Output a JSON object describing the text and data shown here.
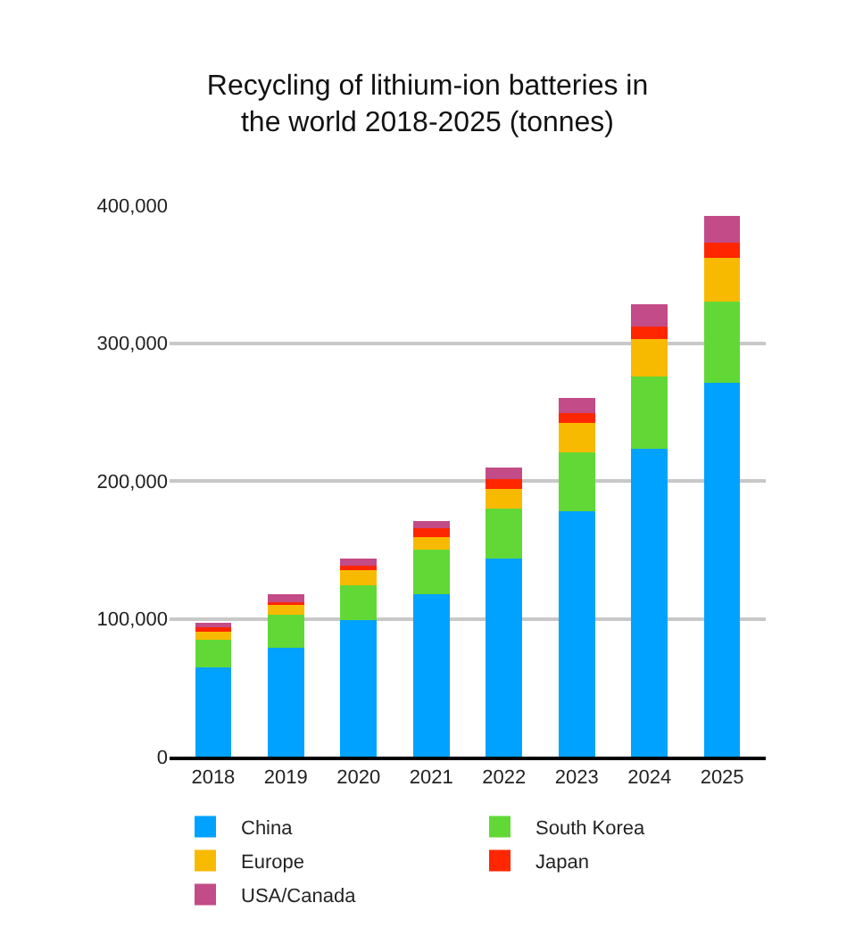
{
  "chart_data": {
    "type": "bar",
    "stacked": true,
    "title": "Recycling of lithium-ion batteries in the world 2018-2025 (tonnes)",
    "categories": [
      "2018",
      "2019",
      "2020",
      "2021",
      "2022",
      "2023",
      "2024",
      "2025"
    ],
    "series": [
      {
        "name": "China",
        "color": "#00a2ff",
        "values": [
          65000,
          79000,
          99000,
          118000,
          144000,
          178000,
          223000,
          271000
        ]
      },
      {
        "name": "South Korea",
        "color": "#61d836",
        "values": [
          20000,
          24000,
          25000,
          32000,
          36000,
          43000,
          53000,
          59000
        ]
      },
      {
        "name": "Europe",
        "color": "#f8ba00",
        "values": [
          6500,
          7500,
          11000,
          9000,
          14000,
          21000,
          27000,
          32000
        ]
      },
      {
        "name": "Japan",
        "color": "#ff2600",
        "values": [
          2500,
          1500,
          3500,
          6500,
          7000,
          7000,
          9000,
          10500
        ]
      },
      {
        "name": "USA/Canada",
        "color": "#c34b87",
        "values": [
          3000,
          5500,
          5000,
          5500,
          9000,
          11500,
          16000,
          20000
        ]
      }
    ],
    "ylim": [
      0,
      400000
    ],
    "yticks": [
      {
        "value": 0,
        "label": "0"
      },
      {
        "value": 100000,
        "label": "100,000"
      },
      {
        "value": 200000,
        "label": "200,000"
      },
      {
        "value": 300000,
        "label": "300,000"
      },
      {
        "value": 400000,
        "label": "400,000"
      }
    ],
    "grid": "y",
    "legend": "bottom"
  }
}
